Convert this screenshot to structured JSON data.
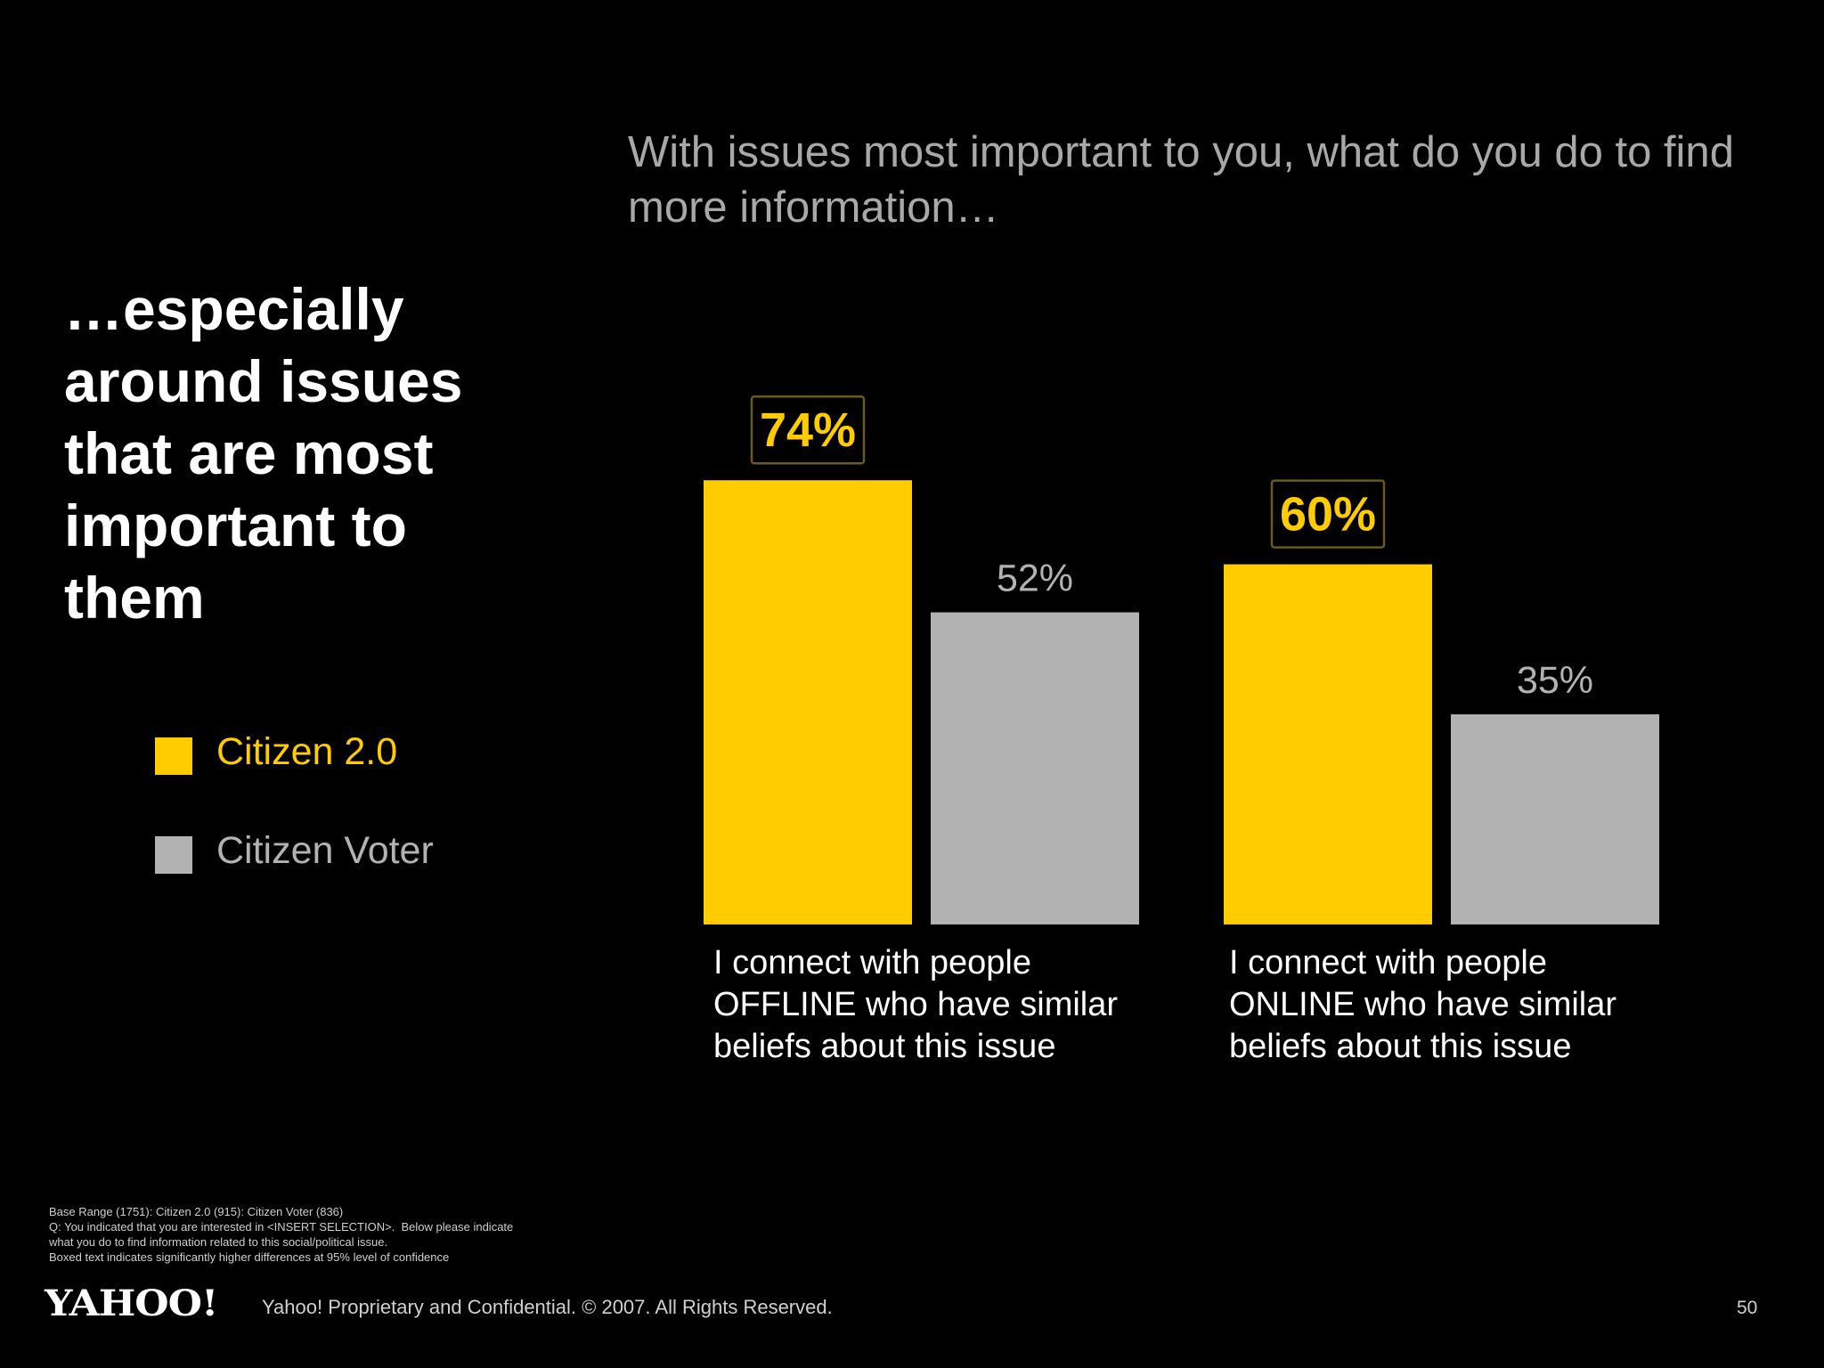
{
  "question": "With issues most important to you, what do you do to find more information…",
  "headline": "…especially around issues that are most important to them",
  "legend": [
    {
      "label": "Citizen 2.0",
      "color": "#ffcc00"
    },
    {
      "label": "Citizen Voter",
      "color": "#b3b2b3"
    }
  ],
  "chart_data": {
    "type": "bar",
    "categories": [
      "I connect with people\nOFFLINE who have similar\nbeliefs about this issue",
      "I connect with people\nONLINE who have similar\nbeliefs about this issue"
    ],
    "series": [
      {
        "name": "Citizen 2.0",
        "values": [
          74,
          60
        ],
        "labels": [
          "74%",
          "60%"
        ],
        "boxed": [
          true,
          true
        ],
        "color": "#ffcc00"
      },
      {
        "name": "Citizen Voter",
        "values": [
          52,
          35
        ],
        "labels": [
          "52%",
          "35%"
        ],
        "boxed": [
          false,
          false
        ],
        "color": "#b3b2b3"
      }
    ],
    "ylim": [
      0,
      100
    ],
    "grid": false,
    "legend_position": "left"
  },
  "footnote": [
    "Base Range (1751): Citizen 2.0 (915): Citizen Voter (836)",
    "Q: You indicated that you are interested in <INSERT SELECTION>.  Below please indicate",
    "what you do to find information related to this social/political issue.",
    "Boxed text indicates significantly higher differences at 95% level of confidence"
  ],
  "footer": {
    "logo": "YAHOO!",
    "copyright": "Yahoo! Proprietary and Confidential. © 2007. All Rights Reserved.",
    "page_number": "50"
  }
}
